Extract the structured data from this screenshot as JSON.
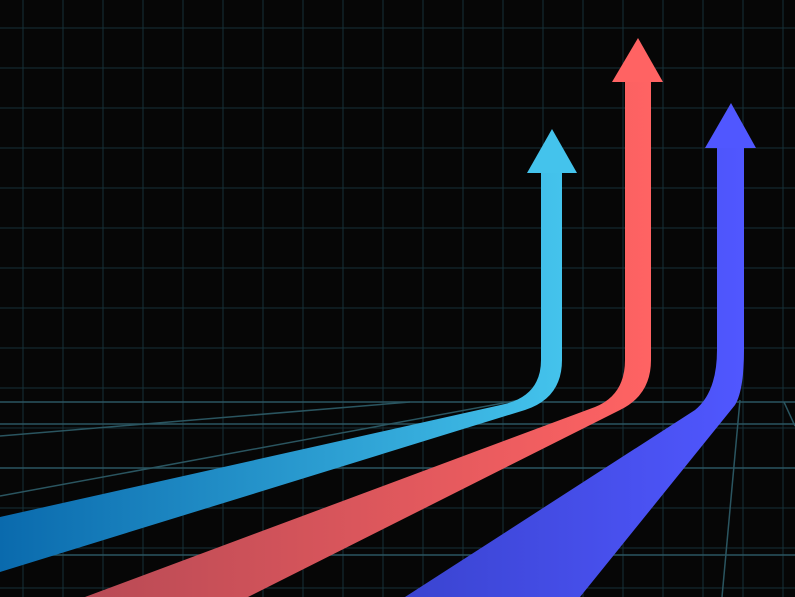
{
  "scene": {
    "background_color": "#060606",
    "grid_color": "#163038",
    "grid_highlight_color": "#2a5560",
    "arrows": [
      {
        "name": "cyan-arrow",
        "gradient": [
          "#0a6aad",
          "#44c3ec"
        ],
        "direction": "up"
      },
      {
        "name": "red-arrow",
        "gradient": [
          "#b84a55",
          "#ff6363"
        ],
        "direction": "up"
      },
      {
        "name": "indigo-arrow",
        "gradient": [
          "#3a44d0",
          "#5057ff"
        ],
        "direction": "up"
      }
    ]
  }
}
